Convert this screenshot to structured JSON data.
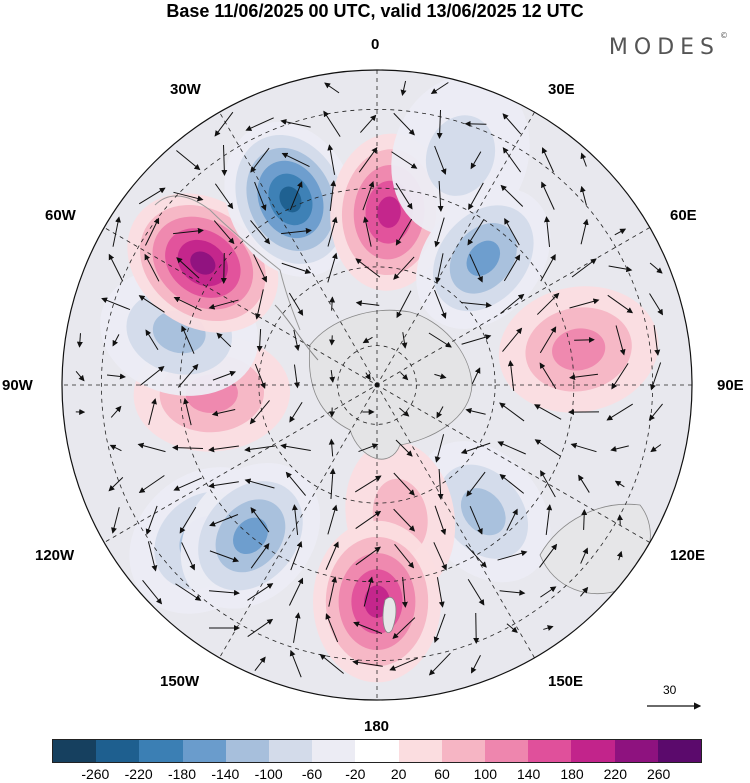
{
  "title": "Base 11/06/2025 00 UTC, valid 13/06/2025 12 UTC",
  "logo": {
    "text": "MODES",
    "mark": "©"
  },
  "longitude_labels": {
    "lon_0": "0",
    "lon_30e": "30E",
    "lon_60e": "60E",
    "lon_90e": "90E",
    "lon_120e": "120E",
    "lon_150e": "150E",
    "lon_180": "180",
    "lon_150w": "150W",
    "lon_120w": "120W",
    "lon_90w": "90W",
    "lon_60w": "60W",
    "lon_30w": "30W"
  },
  "reference_vector": {
    "label": "30"
  },
  "colorbar": {
    "colors": [
      "#16405f",
      "#1e5f8f",
      "#3b7fb4",
      "#6a9ccc",
      "#a7bfdc",
      "#d3dbea",
      "#ececf4",
      "#ffffff",
      "#fbdde0",
      "#f6b5c4",
      "#ee86ae",
      "#e0509b",
      "#c2248b",
      "#8e127f",
      "#5b0a6c"
    ],
    "ticks": [
      "-260",
      "-220",
      "-180",
      "-140",
      "-100",
      "-60",
      "-20",
      "20",
      "60",
      "100",
      "140",
      "180",
      "220",
      "260"
    ]
  },
  "anomaly_cells": [
    {
      "lat": -31,
      "lon": -132,
      "value": -100
    },
    {
      "lat": -48,
      "lon": -93,
      "value": 120
    },
    {
      "lat": -38,
      "lon": -75,
      "value": -120
    },
    {
      "lat": -36,
      "lon": -55,
      "value": 250
    },
    {
      "lat": -38,
      "lon": -25,
      "value": -230
    },
    {
      "lat": -46,
      "lon": 4,
      "value": 200
    },
    {
      "lat": -28,
      "lon": 20,
      "value": -80
    },
    {
      "lat": -48,
      "lon": 40,
      "value": -170
    },
    {
      "lat": -38,
      "lon": 80,
      "value": 120
    },
    {
      "lat": -48,
      "lon": 140,
      "value": -120
    },
    {
      "lat": -56,
      "lon": 170,
      "value": 80
    },
    {
      "lat": -35,
      "lon": 180,
      "value": 200
    },
    {
      "lat": -40,
      "lon": -140,
      "value": -160
    }
  ]
}
